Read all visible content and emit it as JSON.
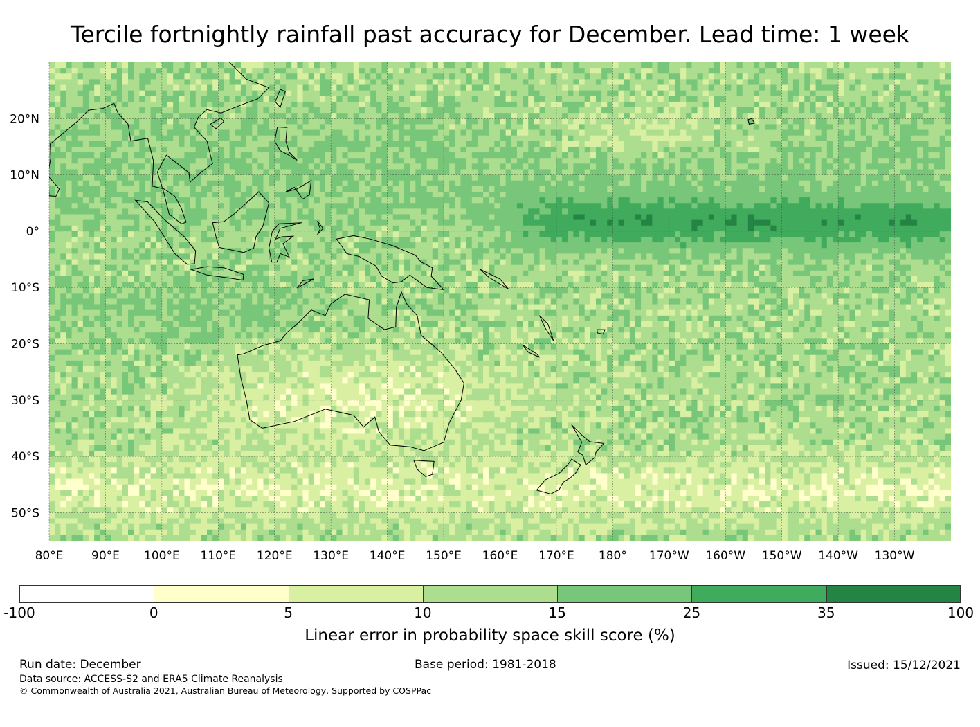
{
  "title": "Tercile fortnightly rainfall past accuracy for December. Lead time: 1 week",
  "map": {
    "lat_labels": [
      "20°N",
      "10°N",
      "0°",
      "10°S",
      "20°S",
      "30°S",
      "40°S",
      "50°S"
    ],
    "lat_values": [
      20,
      10,
      0,
      -10,
      -20,
      -30,
      -40,
      -50
    ],
    "lon_labels": [
      "80°E",
      "90°E",
      "100°E",
      "110°E",
      "120°E",
      "130°E",
      "140°E",
      "150°E",
      "160°E",
      "170°E",
      "180°",
      "170°W",
      "160°W",
      "150°W",
      "140°W",
      "130°W"
    ],
    "lon_values": [
      80,
      90,
      100,
      110,
      120,
      130,
      140,
      150,
      160,
      170,
      180,
      190,
      200,
      210,
      220,
      230
    ],
    "extent": {
      "lon": [
        80,
        240
      ],
      "lat": [
        -55,
        30
      ]
    }
  },
  "colorbar": {
    "label": "Linear error in probability space skill score (%)",
    "ticks": [
      "-100",
      "0",
      "5",
      "10",
      "15",
      "25",
      "35",
      "100"
    ],
    "colors": [
      "#ffffff",
      "#ffffcc",
      "#d9f0a3",
      "#addd8e",
      "#78c679",
      "#41ab5d",
      "#238443"
    ]
  },
  "footer": {
    "run_date": "Run date: December",
    "base_period": "Base period: 1981-2018",
    "issued": "Issued: 15/12/2021",
    "data_source": "Data source: ACCESS-S2 and ERA5 Climate Reanalysis",
    "copyright": "© Commonwealth of Australia 2021, Australian Bureau of Meteorology, Supported by COSPPac"
  }
}
